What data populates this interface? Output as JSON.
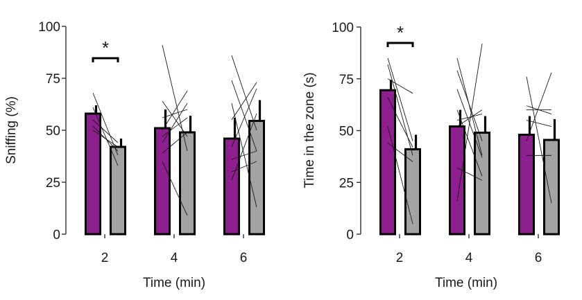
{
  "colors": {
    "series_1": "#8e1f8e",
    "series_2": "#a3a3a3",
    "outline": "#000000",
    "axis": "#222222",
    "individual_lines": "#1a1a1a"
  },
  "chart_data": [
    {
      "type": "bar",
      "title": "",
      "xlabel": "Time (min)",
      "ylabel": "Sniffing (%)",
      "categories": [
        "2",
        "4",
        "6"
      ],
      "ylim": [
        0,
        100
      ],
      "yticks": [
        "0",
        "25",
        "50",
        "75",
        "100"
      ],
      "grid": false,
      "legend": "none",
      "series": [
        {
          "values": [
            58,
            51,
            46
          ],
          "error": [
            4,
            9,
            10
          ]
        },
        {
          "values": [
            42,
            49,
            54.5
          ],
          "error": [
            4,
            8,
            10
          ]
        }
      ],
      "individual_lines": [
        [
          [
            68,
            38
          ],
          [
            61,
            33
          ],
          [
            55,
            44
          ],
          [
            52,
            40
          ],
          [
            50,
            42
          ]
        ],
        [
          [
            91,
            40
          ],
          [
            64,
            47
          ],
          [
            56,
            60
          ],
          [
            50,
            69
          ],
          [
            47,
            56
          ],
          [
            44,
            63
          ],
          [
            39,
            49
          ],
          [
            35,
            9
          ]
        ],
        [
          [
            86,
            50
          ],
          [
            74,
            40
          ],
          [
            63,
            13
          ],
          [
            55,
            73
          ],
          [
            42,
            70
          ],
          [
            36,
            40
          ],
          [
            30,
            35
          ],
          [
            26,
            58
          ]
        ]
      ],
      "annotations": [
        {
          "text": "*",
          "between": [
            "2",
            "2"
          ]
        }
      ]
    },
    {
      "type": "bar",
      "title": "",
      "xlabel": "Time (min)",
      "ylabel": "Time in the zone (s)",
      "categories": [
        "2",
        "4",
        "6"
      ],
      "ylim": [
        0,
        100
      ],
      "yticks": [
        "0",
        "25",
        "50",
        "75",
        "100"
      ],
      "grid": false,
      "legend": "none",
      "series": [
        {
          "values": [
            69.5,
            52,
            48
          ],
          "error": [
            5,
            8,
            9
          ]
        },
        {
          "values": [
            41,
            49,
            45.5
          ],
          "error": [
            7,
            8,
            10
          ]
        }
      ],
      "individual_lines": [
        [
          [
            85,
            45
          ],
          [
            82,
            38
          ],
          [
            75,
            68
          ],
          [
            66,
            42
          ],
          [
            52,
            5
          ],
          [
            44,
            35
          ]
        ],
        [
          [
            85,
            38
          ],
          [
            79,
            45
          ],
          [
            70,
            37
          ],
          [
            60,
            28
          ],
          [
            55,
            58
          ],
          [
            52,
            60
          ],
          [
            32,
            26
          ],
          [
            16,
            92
          ]
        ],
        [
          [
            76,
            15
          ],
          [
            62,
            58
          ],
          [
            60,
            60
          ],
          [
            55,
            52
          ],
          [
            45,
            78
          ],
          [
            38,
            38
          ]
        ]
      ],
      "annotations": [
        {
          "text": "*",
          "between": [
            "2",
            "2"
          ]
        }
      ]
    }
  ]
}
